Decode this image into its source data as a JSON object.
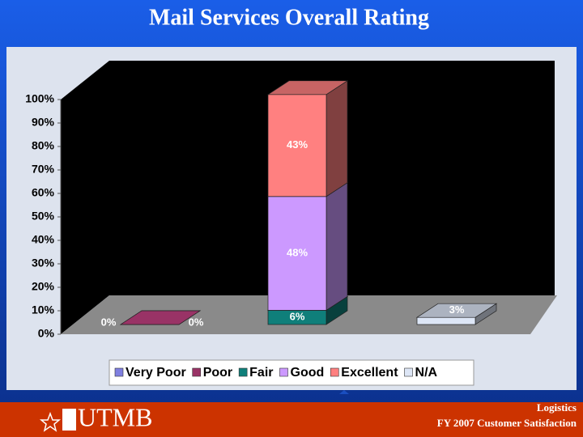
{
  "title": "Mail Services Overall Rating",
  "chart_data": {
    "type": "bar",
    "stacked": true,
    "categories": [
      null,
      null,
      null
    ],
    "ylim": [
      0,
      100
    ],
    "yticks": [
      {
        "value": 0,
        "label": "0%"
      },
      {
        "value": 10,
        "label": "10%"
      },
      {
        "value": 20,
        "label": "20%"
      },
      {
        "value": 30,
        "label": "30%"
      },
      {
        "value": 40,
        "label": "40%"
      },
      {
        "value": 50,
        "label": "50%"
      },
      {
        "value": 60,
        "label": "60%"
      },
      {
        "value": 70,
        "label": "70%"
      },
      {
        "value": 80,
        "label": "80%"
      },
      {
        "value": 90,
        "label": "90%"
      },
      {
        "value": 100,
        "label": "100%"
      }
    ],
    "series": [
      {
        "name": "Very Poor",
        "color": "#7f7fe0",
        "values": [
          0,
          null,
          null
        ],
        "value_labels": [
          "0%",
          null,
          null
        ]
      },
      {
        "name": "Poor",
        "color": "#993366",
        "values": [
          0,
          null,
          null
        ],
        "value_labels": [
          "0%",
          null,
          null
        ]
      },
      {
        "name": "Fair",
        "color": "#0f7f7a",
        "values": [
          null,
          6,
          null
        ],
        "value_labels": [
          null,
          "6%",
          null
        ]
      },
      {
        "name": "Good",
        "color": "#cc99ff",
        "values": [
          null,
          48,
          null
        ],
        "value_labels": [
          null,
          "48%",
          null
        ]
      },
      {
        "name": "Excellent",
        "color": "#ff8080",
        "values": [
          null,
          43,
          null
        ],
        "value_labels": [
          null,
          "43%",
          null
        ]
      },
      {
        "name": "N/A",
        "color": "#dde6f6",
        "values": [
          null,
          null,
          3
        ],
        "value_labels": [
          null,
          null,
          "3%"
        ]
      }
    ],
    "legend": "bottom"
  },
  "footer": {
    "logo": "UTMB",
    "department": "Logistics",
    "caption": "FY 2007 Customer Satisfaction"
  }
}
